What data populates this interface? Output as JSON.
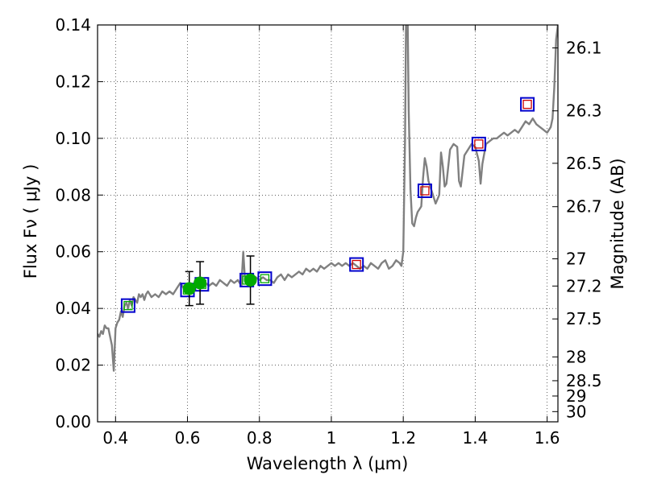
{
  "chart_data": {
    "type": "line",
    "title": "",
    "xlabel": "Wavelength  λ (μm)",
    "ylabel_left": "Flux  Fν  ( μJy )",
    "ylabel_right": "Magnitude (AB)",
    "xlim": [
      0.35,
      1.63
    ],
    "ylim": [
      0.0,
      0.14
    ],
    "grid": true,
    "x_ticks": [
      0.4,
      0.6,
      0.8,
      1.0,
      1.2,
      1.4,
      1.6
    ],
    "x_tick_labels": [
      "0.4",
      "0.6",
      "0.8",
      "1",
      "1.2",
      "1.4",
      "1.6"
    ],
    "y_ticks": [
      0.0,
      0.02,
      0.04,
      0.06,
      0.08,
      0.1,
      0.12,
      0.14
    ],
    "y_tick_labels": [
      "0.00",
      "0.02",
      "0.04",
      "0.06",
      "0.08",
      "0.10",
      "0.12",
      "0.14"
    ],
    "right_axis_ticks": [
      {
        "label": "26.1",
        "flux": 0.1319
      },
      {
        "label": "26.3",
        "flux": 0.1097
      },
      {
        "label": "26.5",
        "flux": 0.0912
      },
      {
        "label": "26.7",
        "flux": 0.0759
      },
      {
        "label": "27",
        "flux": 0.0575
      },
      {
        "label": "27.2",
        "flux": 0.0479
      },
      {
        "label": "27.5",
        "flux": 0.0363
      },
      {
        "label": "28",
        "flux": 0.0229
      },
      {
        "label": "28.5",
        "flux": 0.0145
      },
      {
        "label": "29",
        "flux": 0.0091
      },
      {
        "label": "30",
        "flux": 0.0036
      }
    ],
    "series": [
      {
        "kind": "model-spectrum",
        "color": "#808080",
        "points": [
          [
            0.35,
            0.031
          ],
          [
            0.355,
            0.03
          ],
          [
            0.36,
            0.032
          ],
          [
            0.365,
            0.031
          ],
          [
            0.37,
            0.034
          ],
          [
            0.375,
            0.033
          ],
          [
            0.38,
            0.033
          ],
          [
            0.385,
            0.03
          ],
          [
            0.39,
            0.027
          ],
          [
            0.395,
            0.018
          ],
          [
            0.4,
            0.033
          ],
          [
            0.405,
            0.035
          ],
          [
            0.41,
            0.036
          ],
          [
            0.415,
            0.039
          ],
          [
            0.42,
            0.037
          ],
          [
            0.425,
            0.041
          ],
          [
            0.43,
            0.042
          ],
          [
            0.435,
            0.04
          ],
          [
            0.44,
            0.043
          ],
          [
            0.445,
            0.041
          ],
          [
            0.45,
            0.044
          ],
          [
            0.455,
            0.043
          ],
          [
            0.46,
            0.042
          ],
          [
            0.465,
            0.045
          ],
          [
            0.47,
            0.044
          ],
          [
            0.475,
            0.045
          ],
          [
            0.48,
            0.043
          ],
          [
            0.485,
            0.045
          ],
          [
            0.49,
            0.046
          ],
          [
            0.5,
            0.044
          ],
          [
            0.51,
            0.045
          ],
          [
            0.52,
            0.044
          ],
          [
            0.53,
            0.046
          ],
          [
            0.54,
            0.045
          ],
          [
            0.55,
            0.046
          ],
          [
            0.56,
            0.045
          ],
          [
            0.57,
            0.047
          ],
          [
            0.58,
            0.049
          ],
          [
            0.59,
            0.047
          ],
          [
            0.6,
            0.048
          ],
          [
            0.61,
            0.047
          ],
          [
            0.62,
            0.048
          ],
          [
            0.63,
            0.049
          ],
          [
            0.64,
            0.048
          ],
          [
            0.65,
            0.049
          ],
          [
            0.66,
            0.048
          ],
          [
            0.67,
            0.049
          ],
          [
            0.68,
            0.048
          ],
          [
            0.69,
            0.05
          ],
          [
            0.7,
            0.049
          ],
          [
            0.71,
            0.048
          ],
          [
            0.72,
            0.05
          ],
          [
            0.73,
            0.049
          ],
          [
            0.74,
            0.05
          ],
          [
            0.75,
            0.048
          ],
          [
            0.755,
            0.06
          ],
          [
            0.76,
            0.05
          ],
          [
            0.77,
            0.049
          ],
          [
            0.78,
            0.05
          ],
          [
            0.79,
            0.051
          ],
          [
            0.8,
            0.05
          ],
          [
            0.81,
            0.051
          ],
          [
            0.82,
            0.05
          ],
          [
            0.83,
            0.05
          ],
          [
            0.84,
            0.049
          ],
          [
            0.85,
            0.051
          ],
          [
            0.86,
            0.052
          ],
          [
            0.87,
            0.05
          ],
          [
            0.88,
            0.052
          ],
          [
            0.89,
            0.051
          ],
          [
            0.9,
            0.052
          ],
          [
            0.91,
            0.053
          ],
          [
            0.92,
            0.052
          ],
          [
            0.93,
            0.054
          ],
          [
            0.94,
            0.053
          ],
          [
            0.95,
            0.054
          ],
          [
            0.96,
            0.053
          ],
          [
            0.97,
            0.055
          ],
          [
            0.98,
            0.054
          ],
          [
            0.99,
            0.055
          ],
          [
            1.0,
            0.056
          ],
          [
            1.01,
            0.055
          ],
          [
            1.02,
            0.056
          ],
          [
            1.03,
            0.055
          ],
          [
            1.04,
            0.056
          ],
          [
            1.05,
            0.055
          ],
          [
            1.06,
            0.056
          ],
          [
            1.07,
            0.055
          ],
          [
            1.08,
            0.054
          ],
          [
            1.09,
            0.055
          ],
          [
            1.1,
            0.054
          ],
          [
            1.11,
            0.056
          ],
          [
            1.12,
            0.055
          ],
          [
            1.13,
            0.054
          ],
          [
            1.14,
            0.056
          ],
          [
            1.15,
            0.057
          ],
          [
            1.16,
            0.054
          ],
          [
            1.17,
            0.055
          ],
          [
            1.18,
            0.057
          ],
          [
            1.19,
            0.056
          ],
          [
            1.195,
            0.055
          ],
          [
            1.2,
            0.06
          ],
          [
            1.205,
            0.1
          ],
          [
            1.208,
            0.145
          ],
          [
            1.212,
            0.145
          ],
          [
            1.215,
            0.11
          ],
          [
            1.22,
            0.082
          ],
          [
            1.225,
            0.07
          ],
          [
            1.23,
            0.069
          ],
          [
            1.235,
            0.072
          ],
          [
            1.24,
            0.074
          ],
          [
            1.245,
            0.075
          ],
          [
            1.25,
            0.076
          ],
          [
            1.255,
            0.086
          ],
          [
            1.26,
            0.093
          ],
          [
            1.265,
            0.09
          ],
          [
            1.27,
            0.085
          ],
          [
            1.28,
            0.081
          ],
          [
            1.29,
            0.077
          ],
          [
            1.3,
            0.08
          ],
          [
            1.305,
            0.095
          ],
          [
            1.31,
            0.09
          ],
          [
            1.315,
            0.083
          ],
          [
            1.32,
            0.084
          ],
          [
            1.33,
            0.096
          ],
          [
            1.34,
            0.098
          ],
          [
            1.35,
            0.097
          ],
          [
            1.355,
            0.085
          ],
          [
            1.36,
            0.083
          ],
          [
            1.37,
            0.094
          ],
          [
            1.38,
            0.096
          ],
          [
            1.39,
            0.098
          ],
          [
            1.4,
            0.097
          ],
          [
            1.41,
            0.092
          ],
          [
            1.415,
            0.084
          ],
          [
            1.42,
            0.091
          ],
          [
            1.43,
            0.098
          ],
          [
            1.44,
            0.099
          ],
          [
            1.45,
            0.1
          ],
          [
            1.46,
            0.1
          ],
          [
            1.47,
            0.101
          ],
          [
            1.48,
            0.102
          ],
          [
            1.49,
            0.101
          ],
          [
            1.5,
            0.102
          ],
          [
            1.51,
            0.103
          ],
          [
            1.52,
            0.102
          ],
          [
            1.53,
            0.104
          ],
          [
            1.54,
            0.106
          ],
          [
            1.55,
            0.105
          ],
          [
            1.56,
            0.107
          ],
          [
            1.57,
            0.105
          ],
          [
            1.58,
            0.104
          ],
          [
            1.59,
            0.103
          ],
          [
            1.6,
            0.102
          ],
          [
            1.61,
            0.104
          ],
          [
            1.615,
            0.107
          ],
          [
            1.62,
            0.118
          ],
          [
            1.625,
            0.135
          ],
          [
            1.63,
            0.14
          ]
        ]
      },
      {
        "kind": "observed-photometry",
        "color": "#00aa00",
        "points": [
          {
            "x": 0.605,
            "y": 0.047,
            "yerr": 0.006
          },
          {
            "x": 0.635,
            "y": 0.049,
            "yerr": 0.0075
          },
          {
            "x": 0.775,
            "y": 0.05,
            "yerr": 0.0085
          }
        ]
      },
      {
        "kind": "synthetic-photometry-blue",
        "color": "#0000cc",
        "points": [
          [
            0.435,
            0.041
          ],
          [
            0.6,
            0.0465
          ],
          [
            0.64,
            0.0485
          ],
          [
            0.765,
            0.05
          ],
          [
            0.815,
            0.0505
          ],
          [
            1.07,
            0.0555
          ],
          [
            1.26,
            0.0815
          ],
          [
            1.41,
            0.098
          ],
          [
            1.545,
            0.112
          ]
        ]
      },
      {
        "kind": "synthetic-photometry-inner",
        "points": [
          {
            "x": 0.435,
            "y": 0.041,
            "color": "#00aa00"
          },
          {
            "x": 0.6,
            "y": 0.0465,
            "color": "#00aa00"
          },
          {
            "x": 0.64,
            "y": 0.0485,
            "color": "#00aa00"
          },
          {
            "x": 0.765,
            "y": 0.05,
            "color": "#00aa00"
          },
          {
            "x": 0.815,
            "y": 0.0505,
            "color": "#00aa00"
          },
          {
            "x": 1.07,
            "y": 0.0555,
            "color": "#cc0000"
          },
          {
            "x": 1.26,
            "y": 0.0815,
            "color": "#cc0000"
          },
          {
            "x": 1.41,
            "y": 0.098,
            "color": "#cc0000"
          },
          {
            "x": 1.545,
            "y": 0.112,
            "color": "#cc0000"
          }
        ]
      }
    ]
  }
}
